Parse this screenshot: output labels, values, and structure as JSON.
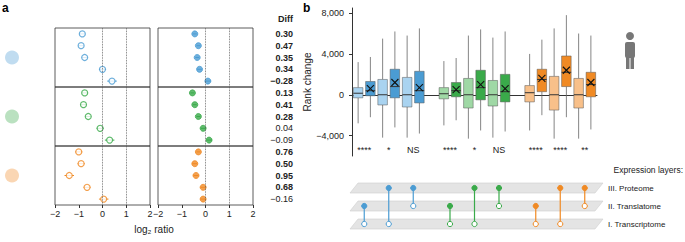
{
  "chart_data": [
    {
      "type": "scatter",
      "panel_label": "a",
      "x_label": "log₂ ratio",
      "xlim": [
        -2,
        2
      ],
      "xticks": [
        {
          "value": -2,
          "label": "−2"
        },
        {
          "value": -1,
          "label": "−1"
        },
        0,
        1,
        2
      ],
      "ref_lines": [
        0,
        1
      ],
      "grid": false,
      "tick_labels": "x",
      "diff_title": "Diff",
      "groups": [
        {
          "series": [
            {
              "marker": "open circle",
              "color": "#4b9cd3",
              "values": [
                -0.85,
                -0.9,
                -0.75,
                0.0,
                0.4
              ],
              "errors": [
                0.12,
                0.12,
                0.12,
                0.15,
                0.2
              ]
            },
            {
              "marker": "circle",
              "color": "#4b9cd3",
              "values": [
                -0.45,
                -0.3,
                -0.35,
                -0.25,
                0.1
              ],
              "errors": [
                0.08,
                0.08,
                0.08,
                0.1,
                0.12
              ]
            }
          ],
          "diff": {
            "values": [
              0.3,
              0.47,
              0.35,
              0.34,
              -0.28
            ],
            "value_labels": [
              "0.30",
              "0.47",
              "0.35",
              "0.34",
              "−0.28"
            ],
            "significant": [
              true,
              true,
              true,
              true,
              true
            ]
          }
        },
        {
          "series": [
            {
              "marker": "open circle",
              "color": "#3aaa4a",
              "values": [
                -0.75,
                -0.8,
                -0.6,
                -0.1,
                0.3
              ],
              "errors": [
                0.12,
                0.12,
                0.12,
                0.15,
                0.2
              ]
            },
            {
              "marker": "circle",
              "color": "#3aaa4a",
              "values": [
                -0.55,
                -0.45,
                -0.3,
                -0.1,
                0.15
              ],
              "errors": [
                0.08,
                0.08,
                0.08,
                0.1,
                0.12
              ]
            }
          ],
          "diff": {
            "values": [
              0.13,
              0.41,
              0.28,
              0.04,
              -0.09
            ],
            "value_labels": [
              "0.13",
              "0.41",
              "0.28",
              "0.04",
              "−0.09"
            ],
            "significant": [
              true,
              true,
              true,
              false,
              false
            ]
          }
        },
        {
          "series": [
            {
              "marker": "open circle",
              "color": "#f08a24",
              "values": [
                -1.0,
                -0.9,
                -1.4,
                -0.65,
                0.05
              ],
              "errors": [
                0.15,
                0.15,
                0.2,
                0.15,
                0.2
              ]
            },
            {
              "marker": "circle",
              "color": "#f08a24",
              "values": [
                -0.3,
                -0.45,
                -0.4,
                -0.1,
                -0.1
              ],
              "errors": [
                0.08,
                0.1,
                0.1,
                0.1,
                0.12
              ]
            }
          ],
          "diff": {
            "values": [
              0.76,
              0.5,
              0.95,
              0.68,
              -0.16
            ],
            "value_labels": [
              "0.76",
              "0.50",
              "0.95",
              "0.68",
              "−0.16"
            ],
            "significant": [
              true,
              true,
              true,
              true,
              false
            ]
          }
        }
      ]
    },
    {
      "type": "boxplot",
      "panel_label": "b",
      "y_label": "Rank change",
      "ylim": [
        -6000,
        8500
      ],
      "yticks": [
        {
          "value": -4000,
          "label": "−4,000"
        },
        0,
        {
          "value": 4000,
          "label": "4,000"
        },
        {
          "value": 8000,
          "label": "8,000"
        }
      ],
      "grid": false,
      "tick_labels": "y",
      "marker": "x",
      "layers_title": "Expression layers:",
      "layers": [
        "III. Proteome",
        "II. Translatome",
        "I. Transcriptome"
      ],
      "groups": [
        {
          "color": "#4b9cd3",
          "light_color": "#a9d3f0",
          "comparisons": [
            {
              "boxes": [
                [
                  -2800,
                  -300,
                  150,
                  700,
                  3200
                ],
                [
                  -2200,
                  -100,
                  400,
                  1300,
                  3700
                ]
              ],
              "mean": 600,
              "significance": "****",
              "link": [
                2,
                1
              ]
            },
            {
              "boxes": [
                [
                  -4200,
                  -1000,
                  0,
                  1500,
                  5500
                ],
                [
                  -3200,
                  -300,
                  800,
                  2500,
                  6200
                ]
              ],
              "mean": 1200,
              "significance": "*",
              "link": [
                2,
                0
              ]
            },
            {
              "boxes": [
                [
                  -4200,
                  -1200,
                  0,
                  1700,
                  5800
                ],
                [
                  -3800,
                  -800,
                  400,
                  2300,
                  6500
                ]
              ],
              "mean": 700,
              "significance": "NS",
              "link": [
                1,
                0
              ]
            }
          ]
        },
        {
          "color": "#3aaa4a",
          "light_color": "#9fd8a5",
          "comparisons": [
            {
              "boxes": [
                [
                  -3000,
                  -400,
                  100,
                  700,
                  3300
                ],
                [
                  -2500,
                  -200,
                  400,
                  1200,
                  3600
                ]
              ],
              "mean": 500,
              "significance": "****",
              "link": [
                2,
                1
              ]
            },
            {
              "boxes": [
                [
                  -4300,
                  -1300,
                  0,
                  1600,
                  5800
                ],
                [
                  -3500,
                  -500,
                  700,
                  2400,
                  6400
                ]
              ],
              "mean": 1000,
              "significance": "*",
              "link": [
                2,
                0
              ]
            },
            {
              "boxes": [
                [
                  -4200,
                  -1100,
                  0,
                  1400,
                  5600
                ],
                [
                  -3600,
                  -700,
                  300,
                  2000,
                  6200
                ]
              ],
              "mean": 600,
              "significance": "NS",
              "link": [
                1,
                0
              ]
            }
          ]
        },
        {
          "color": "#f08a24",
          "light_color": "#f8c08a",
          "comparisons": [
            {
              "boxes": [
                [
                  -3500,
                  -700,
                  200,
                  900,
                  4000
                ],
                [
                  -2000,
                  300,
                  1500,
                  2500,
                  5400
                ]
              ],
              "mean": 1600,
              "significance": "****",
              "link": [
                2,
                1
              ]
            },
            {
              "boxes": [
                [
                  -4300,
                  -1500,
                  0,
                  1800,
                  6500
                ],
                [
                  -2200,
                  800,
                  2200,
                  3800,
                  7800
                ]
              ],
              "mean": 2400,
              "significance": "****",
              "link": [
                2,
                0
              ]
            },
            {
              "boxes": [
                [
                  -4300,
                  -1300,
                  0,
                  1600,
                  6000
                ],
                [
                  -3400,
                  -200,
                  1000,
                  2200,
                  5800
                ]
              ],
              "mean": 1200,
              "significance": "**",
              "link": [
                1,
                0
              ]
            }
          ]
        }
      ]
    }
  ]
}
